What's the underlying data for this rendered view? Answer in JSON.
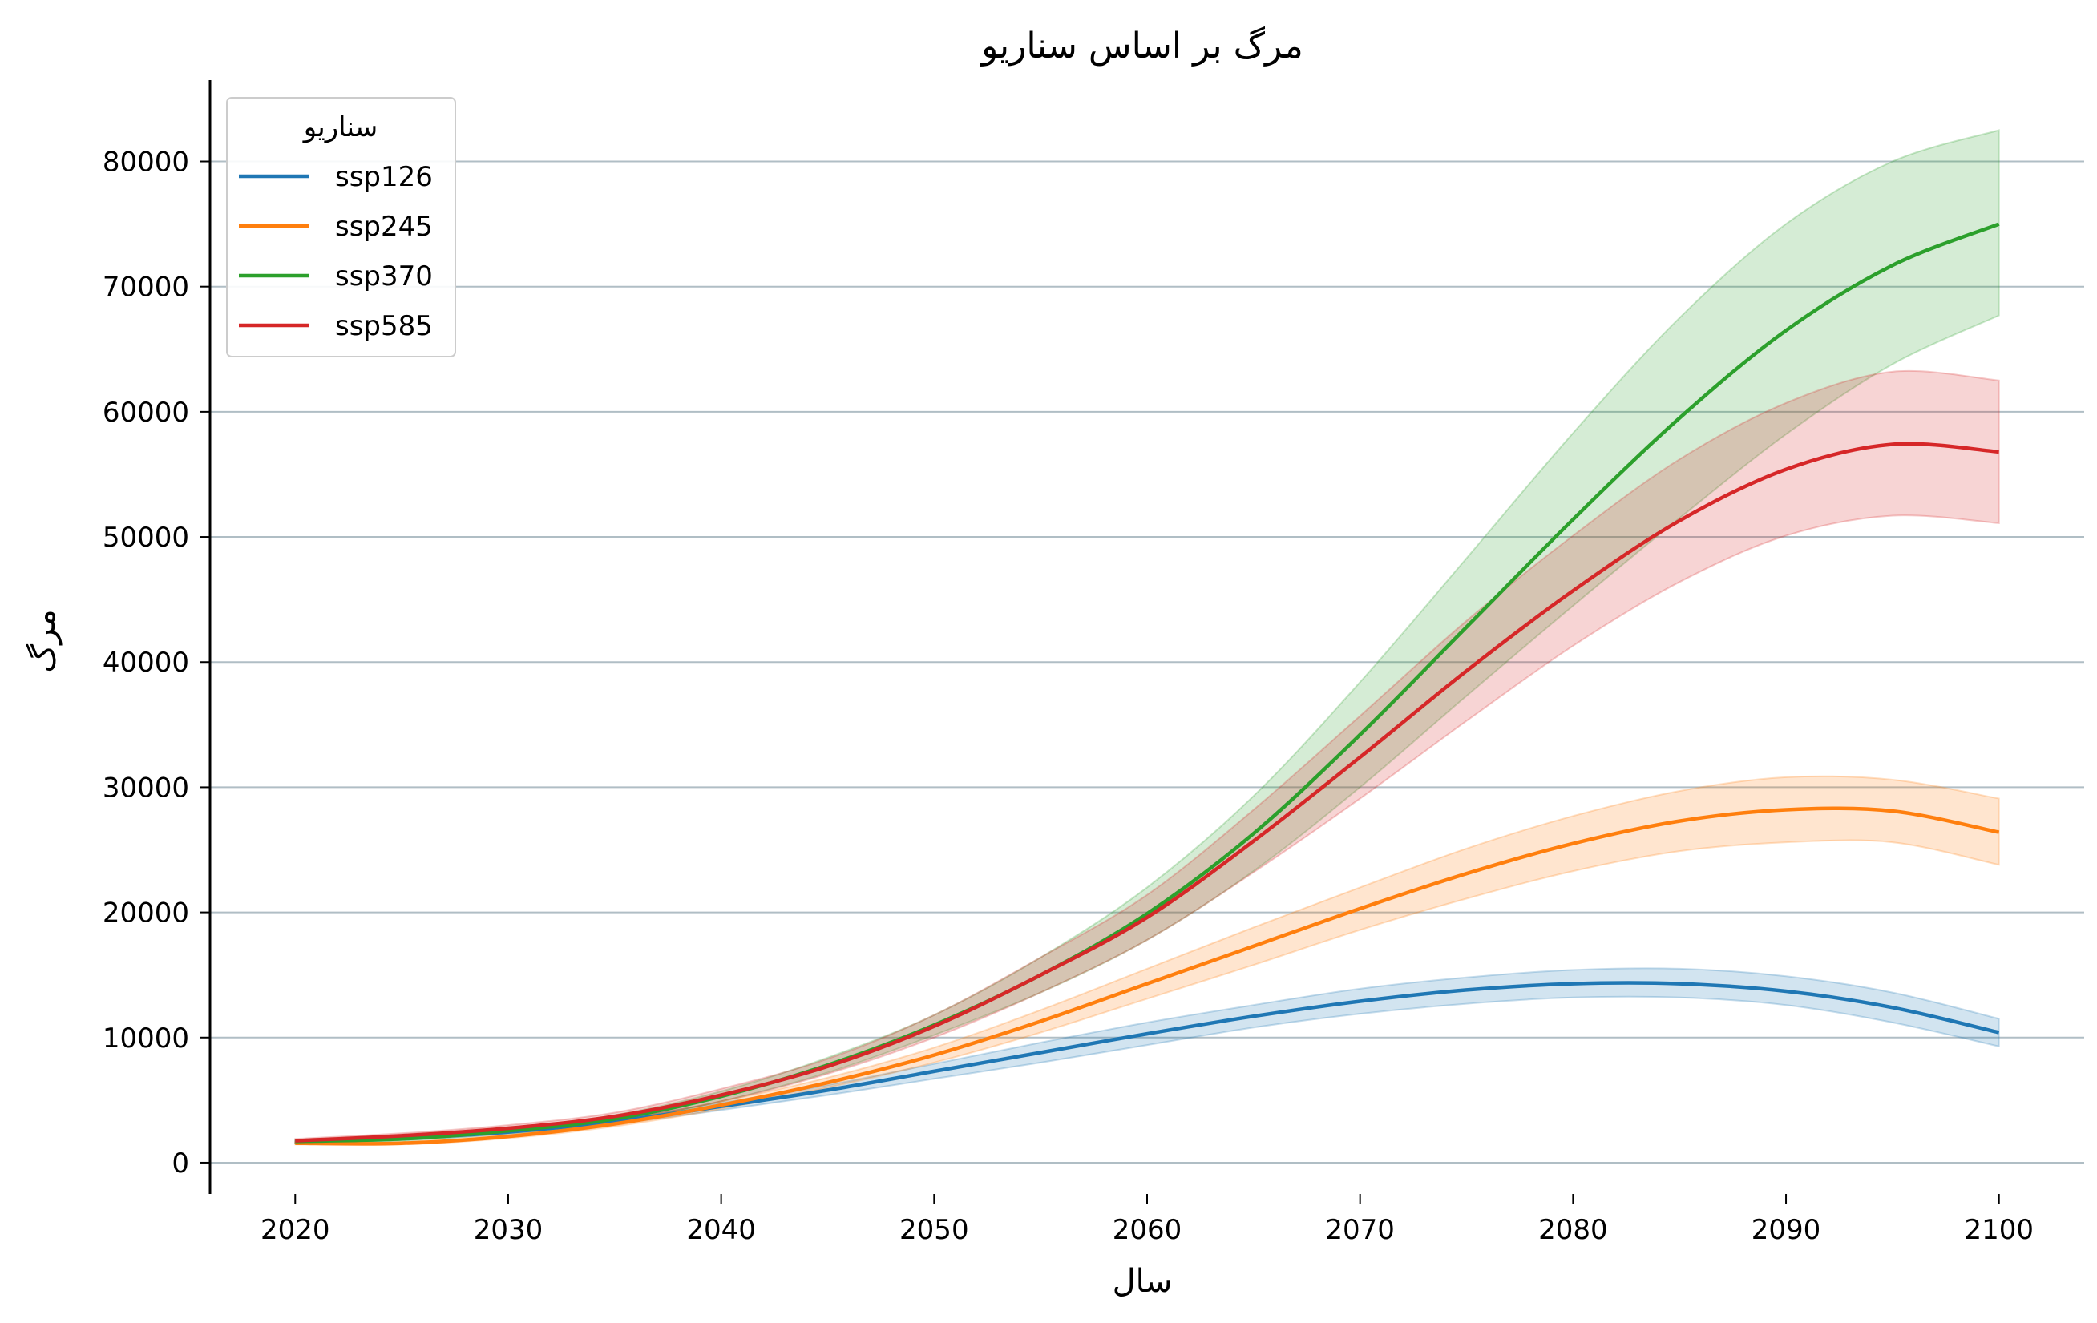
{
  "chart_data": {
    "type": "line",
    "title": "مرگ بر اساس سناریو",
    "xlabel": "سال",
    "ylabel": "مرگ",
    "xlim": [
      2016,
      2104
    ],
    "ylim": [
      -2500,
      86500
    ],
    "xticks": [
      2020,
      2030,
      2040,
      2050,
      2060,
      2070,
      2080,
      2090,
      2100
    ],
    "yticks": [
      0,
      10000,
      20000,
      30000,
      40000,
      50000,
      60000,
      70000,
      80000
    ],
    "xtick_labels": [
      "2020",
      "2030",
      "2040",
      "2050",
      "2060",
      "2070",
      "2080",
      "2090",
      "2100"
    ],
    "ytick_labels": [
      "0",
      "10000",
      "20000",
      "30000",
      "40000",
      "50000",
      "60000",
      "70000",
      "80000"
    ],
    "grid": "horizontal",
    "legend": {
      "title": "سناریو",
      "placement": "top-left"
    },
    "x": [
      2020,
      2025,
      2030,
      2035,
      2040,
      2045,
      2050,
      2055,
      2060,
      2065,
      2070,
      2075,
      2080,
      2085,
      2090,
      2095,
      2100
    ],
    "series": [
      {
        "name": "ssp126",
        "color": "#1f77b4",
        "values": [
          1650,
          1950,
          2450,
          3300,
          4500,
          5800,
          7300,
          8800,
          10300,
          11700,
          12900,
          13800,
          14300,
          14300,
          13700,
          12400,
          10400
        ],
        "lower": [
          1550,
          1800,
          2300,
          3100,
          4200,
          5400,
          6700,
          8000,
          9400,
          10800,
          11900,
          12700,
          13200,
          13200,
          12600,
          11200,
          9300
        ],
        "upper": [
          1750,
          2100,
          2600,
          3500,
          4800,
          6200,
          7900,
          9600,
          11200,
          12600,
          13900,
          14800,
          15400,
          15500,
          14900,
          13600,
          11500
        ]
      },
      {
        "name": "ssp245",
        "color": "#ff7f0e",
        "values": [
          1550,
          1550,
          2100,
          3100,
          4600,
          6400,
          8600,
          11300,
          14300,
          17300,
          20300,
          23100,
          25500,
          27300,
          28200,
          28100,
          26400
        ],
        "lower": [
          1450,
          1450,
          1950,
          2900,
          4300,
          6000,
          8000,
          10400,
          13100,
          15800,
          18600,
          21100,
          23300,
          24900,
          25600,
          25600,
          23800
        ],
        "upper": [
          1650,
          1650,
          2250,
          3300,
          4900,
          6800,
          9200,
          12200,
          15500,
          18800,
          22000,
          25100,
          27700,
          29700,
          30800,
          30600,
          29100
        ]
      },
      {
        "name": "ssp370",
        "color": "#2ca02c",
        "values": [
          1700,
          1900,
          2550,
          3500,
          5300,
          7800,
          11000,
          15000,
          19900,
          26300,
          34200,
          42800,
          51400,
          59500,
          66500,
          71700,
          75000
        ],
        "lower": [
          1600,
          1750,
          2350,
          3200,
          4900,
          7200,
          10200,
          13600,
          17800,
          23300,
          30000,
          37300,
          44500,
          51500,
          58200,
          63800,
          67700
        ],
        "upper": [
          1800,
          2050,
          2750,
          3800,
          5700,
          8400,
          11800,
          16400,
          22000,
          29300,
          38400,
          48300,
          58300,
          67500,
          75000,
          80000,
          82500
        ]
      },
      {
        "name": "ssp585",
        "color": "#d62728",
        "values": [
          1750,
          2150,
          2750,
          3700,
          5400,
          7700,
          10900,
          15000,
          19600,
          25700,
          32400,
          39300,
          45700,
          51300,
          55400,
          57400,
          56800
        ],
        "lower": [
          1600,
          1950,
          2500,
          3400,
          4900,
          7100,
          10000,
          13600,
          17800,
          23200,
          29100,
          35300,
          41300,
          46400,
          50100,
          51700,
          51100
        ],
        "upper": [
          1900,
          2350,
          3000,
          4000,
          5900,
          8300,
          11800,
          16400,
          21400,
          28200,
          35700,
          43300,
          50100,
          56200,
          60700,
          63200,
          62500
        ]
      }
    ]
  }
}
